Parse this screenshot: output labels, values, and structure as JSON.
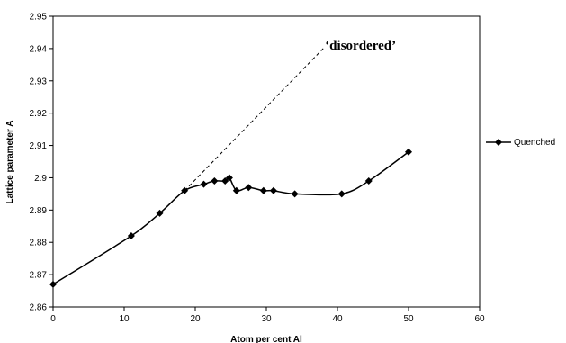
{
  "chart_data": {
    "type": "line",
    "title": "",
    "xlabel": "Atom per cent Al",
    "ylabel": "Lattice parameter A",
    "xlim": [
      0,
      60
    ],
    "ylim": [
      2.86,
      2.95
    ],
    "xticks": [
      0,
      10,
      20,
      30,
      40,
      50,
      60
    ],
    "yticks": [
      2.86,
      2.87,
      2.88,
      2.89,
      2.9,
      2.91,
      2.92,
      2.93,
      2.94,
      2.95
    ],
    "ytick_labels": [
      "2.86",
      "2.87",
      "2.88",
      "2.89",
      "2.9",
      "2.91",
      "2.92",
      "2.93",
      "2.94",
      "2.95"
    ],
    "grid": false,
    "legend_position": "right",
    "series": [
      {
        "name": "Quenched",
        "marker": "diamond",
        "color": "#000000",
        "x": [
          0,
          11,
          15,
          18.5,
          21.2,
          22.7,
          24.2,
          24.8,
          25.8,
          27.5,
          29.6,
          31,
          34,
          40.6,
          44.4,
          50
        ],
        "y": [
          2.867,
          2.882,
          2.889,
          2.896,
          2.898,
          2.899,
          2.899,
          2.9,
          2.896,
          2.897,
          2.896,
          2.896,
          2.895,
          2.895,
          2.899,
          2.908
        ]
      }
    ],
    "annotations": [
      {
        "text": "‘disordered’",
        "line_style": "dashed",
        "from": [
          18.5,
          2.896
        ],
        "to": [
          38,
          2.94
        ]
      }
    ]
  }
}
